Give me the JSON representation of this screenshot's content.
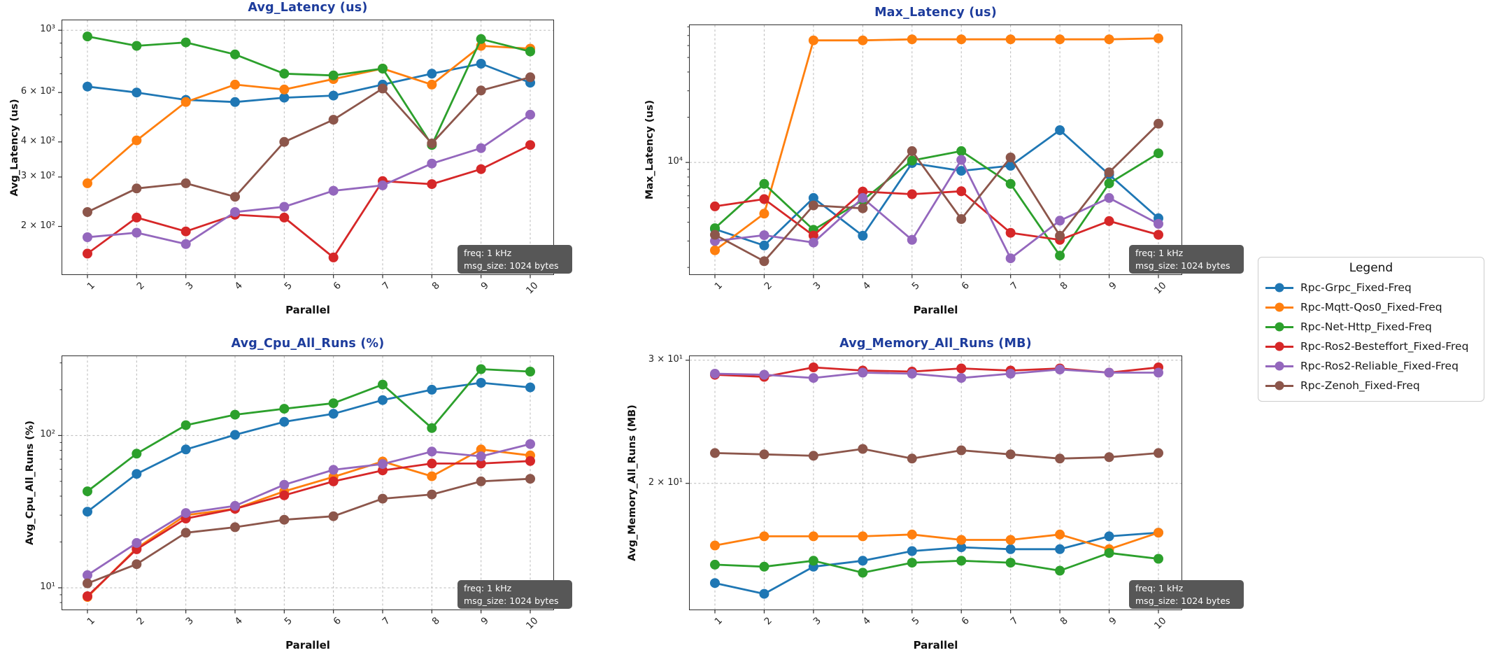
{
  "palette": {
    "blue": "#1f77b4",
    "orange": "#ff7f0e",
    "green": "#2ca02c",
    "red": "#d62728",
    "purple": "#9467bd",
    "brown": "#8c564b"
  },
  "styles": {
    "title_color": "#1d3c9c",
    "grid_color": "#b8b8b8",
    "spine_color": "#2e2e2e",
    "annotation_bg": "#575757",
    "annotation_text": "#ffffff"
  },
  "legend": {
    "title": "Legend",
    "entries": [
      {
        "label": "Rpc-Grpc_Fixed-Freq",
        "color": "blue"
      },
      {
        "label": "Rpc-Mqtt-Qos0_Fixed-Freq",
        "color": "orange"
      },
      {
        "label": "Rpc-Net-Http_Fixed-Freq",
        "color": "green"
      },
      {
        "label": "Rpc-Ros2-Besteffort_Fixed-Freq",
        "color": "red"
      },
      {
        "label": "Rpc-Ros2-Reliable_Fixed-Freq",
        "color": "purple"
      },
      {
        "label": "Rpc-Zenoh_Fixed-Freq",
        "color": "brown"
      }
    ]
  },
  "chart_data": [
    {
      "type": "line",
      "title": "Avg_Latency (us)",
      "xlabel": "Parallel",
      "ylabel": "Avg_Latency (us)",
      "x": [
        1,
        2,
        3,
        4,
        5,
        6,
        7,
        8,
        9,
        10
      ],
      "yscale": "log",
      "ylim": [
        135,
        1085
      ],
      "grid_x": true,
      "y_ticks": [
        {
          "v": 1000,
          "label": "10³",
          "grid": true
        },
        {
          "v": 600,
          "label": "6 × 10²",
          "grid": false
        },
        {
          "v": 400,
          "label": "4 × 10²",
          "grid": false
        },
        {
          "v": 300,
          "label": "3 × 10²",
          "grid": false
        },
        {
          "v": 200,
          "label": "2 × 10²",
          "grid": false
        }
      ],
      "annotation": [
        "freq: 1 kHz",
        "msg_size: 1024 bytes"
      ],
      "series": [
        {
          "name": "Rpc-Grpc_Fixed-Freq",
          "color": "blue",
          "values": [
            630,
            600,
            565,
            555,
            575,
            585,
            640,
            700,
            760,
            650
          ]
        },
        {
          "name": "Rpc-Mqtt-Qos0_Fixed-Freq",
          "color": "orange",
          "values": [
            285,
            405,
            555,
            640,
            615,
            670,
            730,
            640,
            880,
            860
          ]
        },
        {
          "name": "Rpc-Net-Http_Fixed-Freq",
          "color": "green",
          "values": [
            950,
            880,
            905,
            820,
            700,
            690,
            730,
            390,
            930,
            840
          ]
        },
        {
          "name": "Rpc-Ros2-Besteffort_Fixed-Freq",
          "color": "red",
          "values": [
            160,
            215,
            192,
            220,
            215,
            155,
            290,
            283,
            320,
            390
          ]
        },
        {
          "name": "Rpc-Ros2-Reliable_Fixed-Freq",
          "color": "purple",
          "values": [
            183,
            190,
            173,
            225,
            235,
            268,
            280,
            335,
            380,
            500
          ]
        },
        {
          "name": "Rpc-Zenoh_Fixed-Freq",
          "color": "brown",
          "values": [
            225,
            273,
            285,
            255,
            400,
            480,
            620,
            395,
            610,
            680
          ]
        }
      ]
    },
    {
      "type": "line",
      "title": "Max_Latency (us)",
      "xlabel": "Parallel",
      "ylabel": "Max_Latency (us)",
      "x": [
        1,
        2,
        3,
        4,
        5,
        6,
        7,
        8,
        9,
        10
      ],
      "yscale": "log",
      "ylim": [
        1800,
        82000
      ],
      "grid_x": true,
      "y_ticks": [
        {
          "v": 10000,
          "label": "10⁴",
          "grid": true
        }
      ],
      "annotation": [
        "freq: 1 kHz",
        "msg_size: 1024 bytes"
      ],
      "series": [
        {
          "name": "Rpc-Grpc_Fixed-Freq",
          "color": "blue",
          "values": [
            3600,
            2800,
            5800,
            3250,
            9900,
            8800,
            9500,
            16400,
            8300,
            4250
          ]
        },
        {
          "name": "Rpc-Mqtt-Qos0_Fixed-Freq",
          "color": "orange",
          "values": [
            2600,
            4560,
            65000,
            65000,
            66000,
            66000,
            66000,
            66000,
            66000,
            67000
          ]
        },
        {
          "name": "Rpc-Net-Http_Fixed-Freq",
          "color": "green",
          "values": [
            3650,
            7200,
            3560,
            5600,
            10300,
            11900,
            7200,
            2400,
            7250,
            11500
          ]
        },
        {
          "name": "Rpc-Ros2-Besteffort_Fixed-Freq",
          "color": "red",
          "values": [
            5100,
            5700,
            3260,
            6400,
            6150,
            6430,
            3400,
            3050,
            4070,
            3300
          ]
        },
        {
          "name": "Rpc-Ros2-Reliable_Fixed-Freq",
          "color": "purple",
          "values": [
            3000,
            3280,
            2930,
            5800,
            3050,
            10400,
            2300,
            4100,
            5800,
            3900
          ]
        },
        {
          "name": "Rpc-Zenoh_Fixed-Freq",
          "color": "brown",
          "values": [
            3300,
            2200,
            5170,
            4950,
            11900,
            4200,
            10800,
            3250,
            8600,
            18100
          ]
        }
      ]
    },
    {
      "type": "line",
      "title": "Avg_Cpu_All_Runs (%)",
      "xlabel": "Parallel",
      "ylabel": "Avg_Cpu_All_Runs (%)",
      "x": [
        1,
        2,
        3,
        4,
        5,
        6,
        7,
        8,
        9,
        10
      ],
      "yscale": "log",
      "ylim": [
        7.2,
        332
      ],
      "grid_x": true,
      "y_ticks": [
        {
          "v": 100,
          "label": "10²",
          "grid": true
        },
        {
          "v": 10,
          "label": "10¹",
          "grid": true
        }
      ],
      "annotation": [
        "freq: 1 kHz",
        "msg_size: 1024 bytes"
      ],
      "series": [
        {
          "name": "Rpc-Grpc_Fixed-Freq",
          "color": "blue",
          "values": [
            31.6,
            56,
            81,
            101,
            123,
            139,
            171,
            200,
            222,
            207
          ]
        },
        {
          "name": "Rpc-Mqtt-Qos0_Fixed-Freq",
          "color": "orange",
          "values": [
            8.7,
            18.2,
            30,
            33,
            43,
            53.5,
            67.5,
            54,
            81,
            74
          ]
        },
        {
          "name": "Rpc-Net-Http_Fixed-Freq",
          "color": "green",
          "values": [
            43,
            76,
            117,
            137,
            150,
            163,
            216,
            112,
            273,
            263
          ]
        },
        {
          "name": "Rpc-Ros2-Besteffort_Fixed-Freq",
          "color": "red",
          "values": [
            8.8,
            17.9,
            28.5,
            33,
            40.5,
            50,
            59,
            65.5,
            65.5,
            68
          ]
        },
        {
          "name": "Rpc-Ros2-Reliable_Fixed-Freq",
          "color": "purple",
          "values": [
            12.1,
            19.7,
            31,
            34.5,
            47.5,
            59.5,
            65,
            78.5,
            73,
            88
          ]
        },
        {
          "name": "Rpc-Zenoh_Fixed-Freq",
          "color": "brown",
          "values": [
            10.7,
            14.3,
            23,
            25,
            28,
            29.5,
            38.5,
            41,
            50,
            52
          ]
        }
      ]
    },
    {
      "type": "line",
      "title": "Avg_Memory_All_Runs (MB)",
      "xlabel": "Parallel",
      "ylabel": "Avg_Memory_All_Runs (MB)",
      "x": [
        1,
        2,
        3,
        4,
        5,
        6,
        7,
        8,
        9,
        10
      ],
      "yscale": "log",
      "ylim": [
        13.2,
        30.4
      ],
      "grid_x": true,
      "y_ticks": [
        {
          "v": 30,
          "label": "3 × 10¹",
          "grid": true
        },
        {
          "v": 20,
          "label": "2 × 10¹",
          "grid": true
        }
      ],
      "annotation": [
        "freq: 1 kHz",
        "msg_size: 1024 bytes"
      ],
      "series": [
        {
          "name": "Rpc-Grpc_Fixed-Freq",
          "color": "blue",
          "values": [
            14.4,
            13.9,
            15.2,
            15.5,
            16.0,
            16.2,
            16.1,
            16.1,
            16.8,
            17.0
          ]
        },
        {
          "name": "Rpc-Mqtt-Qos0_Fixed-Freq",
          "color": "orange",
          "values": [
            16.3,
            16.8,
            16.8,
            16.8,
            16.9,
            16.6,
            16.6,
            16.9,
            16.1,
            17.0
          ]
        },
        {
          "name": "Rpc-Net-Http_Fixed-Freq",
          "color": "green",
          "values": [
            15.3,
            15.2,
            15.5,
            14.9,
            15.4,
            15.5,
            15.4,
            15.0,
            15.9,
            15.6
          ]
        },
        {
          "name": "Rpc-Ros2-Besteffort_Fixed-Freq",
          "color": "red",
          "values": [
            28.6,
            28.4,
            29.3,
            29.0,
            28.9,
            29.2,
            29.0,
            29.2,
            28.8,
            29.3
          ]
        },
        {
          "name": "Rpc-Ros2-Reliable_Fixed-Freq",
          "color": "purple",
          "values": [
            28.7,
            28.6,
            28.3,
            28.8,
            28.7,
            28.3,
            28.7,
            29.1,
            28.8,
            28.8
          ]
        },
        {
          "name": "Rpc-Zenoh_Fixed-Freq",
          "color": "brown",
          "values": [
            22.1,
            22.0,
            21.9,
            22.4,
            21.7,
            22.3,
            22.0,
            21.7,
            21.8,
            22.1
          ]
        }
      ]
    }
  ]
}
